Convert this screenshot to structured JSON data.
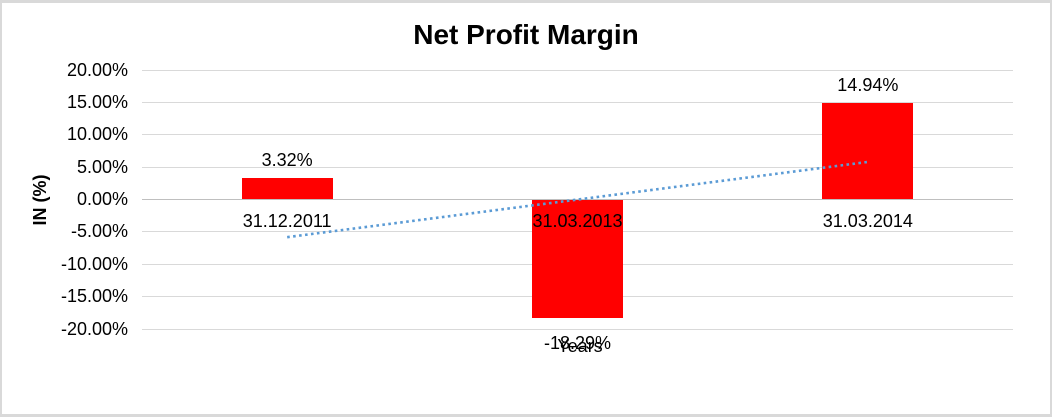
{
  "chart_data": {
    "type": "bar",
    "title": "Net Profit Margin",
    "xlabel": "Years",
    "ylabel": "IN (%)",
    "categories": [
      "31.12.2011",
      "31.03.2013",
      "31.03.2014"
    ],
    "values": [
      3.32,
      -18.29,
      14.94
    ],
    "data_labels": [
      "3.32%",
      "-18.29%",
      "14.94%"
    ],
    "y_tick_values": [
      20,
      15,
      10,
      5,
      0,
      -5,
      -10,
      -15,
      -20
    ],
    "y_tick_labels": [
      "20.00%",
      "15.00%",
      "10.00%",
      "5.00%",
      "0.00%",
      "-5.00%",
      "-10.00%",
      "-15.00%",
      "-20.00%"
    ],
    "ylim": [
      -20,
      20
    ],
    "grid": true,
    "legend": "none",
    "trendline": {
      "type": "linear",
      "style": "dotted",
      "start_value": -5.82,
      "end_value": 5.8
    }
  },
  "colors": {
    "bar": "#FF0000",
    "trendline": "#5B9BD5",
    "gridline": "#D9D9D9",
    "zero_axis": "#BFBFBF",
    "frame_border": "#D9D9D9",
    "text": "#000000",
    "background": "#FFFFFF"
  }
}
